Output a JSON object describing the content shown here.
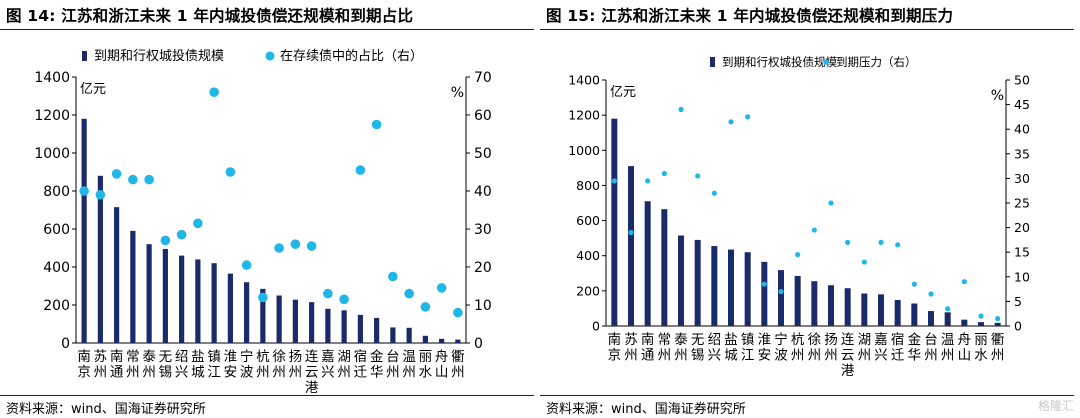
{
  "watermark": "格隆汇",
  "charts": [
    {
      "figure_label": "图 14:",
      "title": "江苏和浙江未来 1 年内城投债偿还规模和到期占比",
      "source": "资料来源：wind、国海证券研究所",
      "chart_data": {
        "type": "bar",
        "categories": [
          "南京",
          "苏州",
          "南通",
          "常州",
          "泰州",
          "无锡",
          "绍兴",
          "盐城",
          "镇江",
          "淮安",
          "宁波",
          "杭州",
          "徐州",
          "扬州",
          "连云港",
          "嘉兴",
          "湖州",
          "宿迁",
          "金华",
          "台州",
          "温州",
          "丽水",
          "舟山",
          "衢州"
        ],
        "series": [
          {
            "name": "到期和行权城投债规模",
            "type": "bar",
            "axis": "left",
            "color": "#1b2a6b",
            "values": [
              1180,
              880,
              715,
              590,
              520,
              495,
              460,
              440,
              420,
              365,
              320,
              285,
              250,
              228,
              215,
              180,
              172,
              148,
              132,
              82,
              80,
              38,
              22,
              18
            ]
          },
          {
            "name": "在存续债中的占比（右）",
            "type": "scatter",
            "axis": "right",
            "color": "#1fb6e8",
            "values": [
              40,
              39,
              44.5,
              43,
              43,
              27,
              28.5,
              31.5,
              66,
              45,
              20.5,
              12,
              25,
              26,
              25.5,
              13,
              11.5,
              45.5,
              57.5,
              17.5,
              13,
              9.5,
              14.5,
              8
            ]
          }
        ],
        "left_axis": {
          "unit_label": "亿元",
          "min": 0,
          "max": 1400,
          "step": 200
        },
        "right_axis": {
          "unit_label": "%",
          "min": 0,
          "max": 70,
          "step": 10
        },
        "legend_position": "top"
      }
    },
    {
      "figure_label": "图 15:",
      "title": "江苏和浙江未来 1 年内城投债偿还规模和到期压力",
      "source": "资料来源：wind、国海证券研究所",
      "chart_data": {
        "type": "bar",
        "categories": [
          "南京",
          "苏州",
          "南通",
          "常州",
          "泰州",
          "无锡",
          "绍兴",
          "盐城",
          "镇江",
          "淮安",
          "宁波",
          "杭州",
          "徐州",
          "扬州",
          "连云港",
          "湖州",
          "嘉兴",
          "宿迁",
          "金华",
          "台州",
          "温州",
          "舟山",
          "丽水",
          "衢州"
        ],
        "series": [
          {
            "name": "到期和行权城投债规模",
            "type": "bar",
            "axis": "left",
            "color": "#1b2a6b",
            "values": [
              1180,
              910,
              710,
              665,
              515,
              490,
              455,
              435,
              420,
              365,
              318,
              285,
              255,
              232,
              215,
              185,
              180,
              148,
              128,
              85,
              78,
              36,
              22,
              18
            ]
          },
          {
            "name": "到期压力（右）",
            "type": "scatter",
            "axis": "right",
            "color": "#1fb6e8",
            "values": [
              29.5,
              19,
              29.5,
              31,
              44,
              30.5,
              27,
              41.5,
              42.5,
              8.5,
              7,
              14.5,
              19.5,
              25,
              17,
              13,
              17,
              16.5,
              8.5,
              6.5,
              3.5,
              9,
              2,
              1.5
            ]
          }
        ],
        "left_axis": {
          "unit_label": "亿元",
          "min": 0,
          "max": 1400,
          "step": 200
        },
        "right_axis": {
          "unit_label": "%",
          "min": 0,
          "max": 50,
          "step": 5
        },
        "legend_position": "top"
      }
    }
  ]
}
